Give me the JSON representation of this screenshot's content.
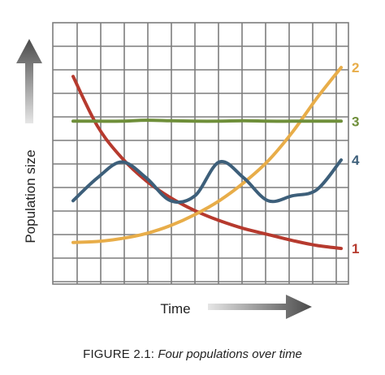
{
  "chart_data": {
    "type": "line",
    "caption_label": "FIGURE 2.1",
    "caption_sep": ":",
    "caption_text": "Four populations over time",
    "xlabel": "Time",
    "ylabel": "Population size",
    "grid": true,
    "x": [
      0,
      1,
      2,
      3,
      4,
      5,
      6,
      7,
      8,
      9,
      10,
      11
    ],
    "xlim": [
      0,
      11
    ],
    "ylim": [
      0,
      10
    ],
    "series": [
      {
        "name": "1",
        "color": "#b63a2e",
        "values": [
          9.3,
          6.8,
          5.2,
          4.05,
          3.2,
          2.55,
          2.05,
          1.65,
          1.35,
          1.05,
          0.8,
          0.65
        ]
      },
      {
        "name": "2",
        "color": "#e8ad49",
        "values": [
          0.95,
          1.0,
          1.15,
          1.4,
          1.8,
          2.35,
          3.05,
          3.95,
          5.05,
          6.5,
          8.2,
          9.75
        ]
      },
      {
        "name": "3",
        "color": "#6f8f3a",
        "values": [
          7.05,
          7.05,
          7.05,
          7.1,
          7.07,
          7.05,
          7.05,
          7.07,
          7.05,
          7.05,
          7.05,
          7.05
        ]
      },
      {
        "name": "4",
        "color": "#3d5f7a",
        "values": [
          3.05,
          4.2,
          5.0,
          4.2,
          3.05,
          3.3,
          5.0,
          4.2,
          3.05,
          3.3,
          3.6,
          5.1
        ]
      }
    ],
    "colors": {
      "grid": "#7d7d7d",
      "arrow_dark": "#4a4a4a",
      "arrow_light": "#e6e6e6",
      "text": "#222222"
    }
  }
}
